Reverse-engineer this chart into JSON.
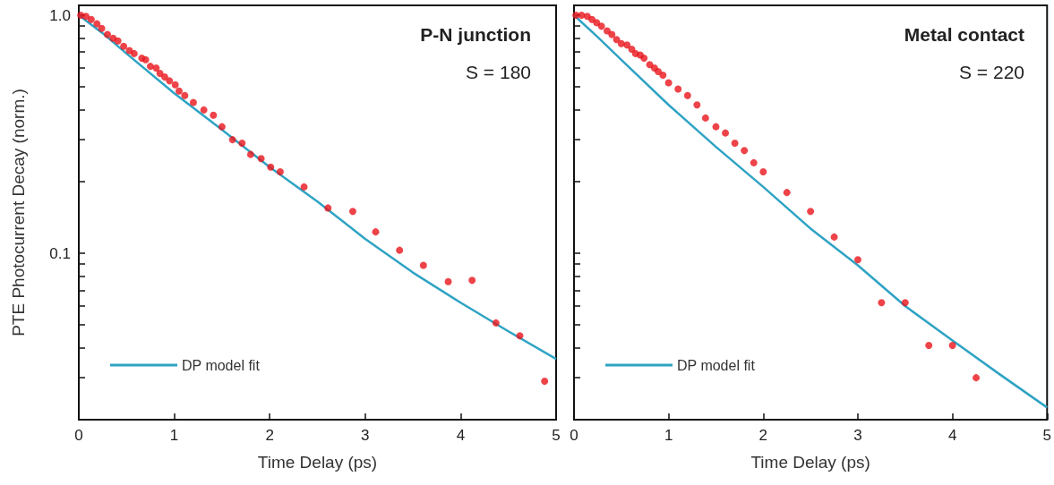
{
  "chart_data": [
    {
      "type": "scatter",
      "xlabel": "Time Delay (ps)",
      "ylabel": "PTE Photocurrent Decay (norm.)",
      "log": "y",
      "grid": false,
      "legend": "bottom left",
      "marker": "circle",
      "xlim": [
        0,
        5
      ],
      "xticks": [
        0,
        1,
        2,
        3,
        4,
        5
      ],
      "ylim": [
        0.02,
        1.1
      ],
      "yticks": [
        {
          "value": 0.03,
          "label": null
        },
        {
          "value": 0.04,
          "label": null
        },
        {
          "value": 0.05,
          "label": null
        },
        {
          "value": 0.06,
          "label": null
        },
        {
          "value": 0.07,
          "label": null
        },
        {
          "value": 0.08,
          "label": null
        },
        {
          "value": 0.09,
          "label": null
        },
        {
          "value": 0.1,
          "label": "0.1"
        },
        {
          "value": 0.2,
          "label": null
        },
        {
          "value": 0.3,
          "label": null
        },
        {
          "value": 0.4,
          "label": null
        },
        {
          "value": 0.5,
          "label": null
        },
        {
          "value": 0.6,
          "label": null
        },
        {
          "value": 0.7,
          "label": null
        },
        {
          "value": 0.8,
          "label": null
        },
        {
          "value": 0.9,
          "label": null
        },
        {
          "value": 1,
          "label": "1.0"
        }
      ],
      "annotations": [
        "P-N junction",
        "S = 180"
      ],
      "series": [
        {
          "color": "#e8141c",
          "x": [
            0.02,
            0.075,
            0.13,
            0.19,
            0.24,
            0.3,
            0.36,
            0.41,
            0.47,
            0.53,
            0.58,
            0.66,
            0.7,
            0.75,
            0.81,
            0.85,
            0.9,
            0.95,
            1.01,
            1.05,
            1.11,
            1.2,
            1.31,
            1.41,
            1.5,
            1.61,
            1.71,
            1.8,
            1.91,
            2.01,
            2.11,
            2.36,
            2.61,
            2.87,
            3.11,
            3.36,
            3.61,
            3.87,
            4.12,
            4.37,
            4.62,
            4.88
          ],
          "values": [
            1.0,
            0.99,
            0.96,
            0.92,
            0.88,
            0.83,
            0.8,
            0.78,
            0.74,
            0.71,
            0.69,
            0.66,
            0.65,
            0.61,
            0.6,
            0.57,
            0.55,
            0.53,
            0.51,
            0.48,
            0.46,
            0.43,
            0.4,
            0.38,
            0.34,
            0.3,
            0.29,
            0.26,
            0.25,
            0.23,
            0.22,
            0.19,
            0.155,
            0.15,
            0.123,
            0.103,
            0.089,
            0.076,
            0.077,
            0.051,
            0.045,
            0.029
          ]
        },
        {
          "type": "line",
          "marker": "none",
          "name": "DP model fit",
          "color": "#2fa3c4",
          "x": [
            0,
            0.25,
            0.5,
            1,
            1.5,
            2,
            2.5,
            3,
            3.5,
            4,
            4.5,
            5
          ],
          "values": [
            1.0,
            0.84,
            0.69,
            0.47,
            0.33,
            0.23,
            0.165,
            0.115,
            0.083,
            0.062,
            0.047,
            0.036
          ]
        }
      ]
    },
    {
      "type": "scatter",
      "xlabel": "Time Delay (ps)",
      "log": "y",
      "grid": false,
      "legend": "bottom left",
      "marker": "circle",
      "tick_labels": "x",
      "xlim": [
        0,
        5
      ],
      "xticks": [
        0,
        1,
        2,
        3,
        4,
        5
      ],
      "ylim": [
        0.02,
        1.1
      ],
      "yticks": [
        {
          "value": 0.03,
          "label": null
        },
        {
          "value": 0.04,
          "label": null
        },
        {
          "value": 0.05,
          "label": null
        },
        {
          "value": 0.06,
          "label": null
        },
        {
          "value": 0.07,
          "label": null
        },
        {
          "value": 0.08,
          "label": null
        },
        {
          "value": 0.09,
          "label": null
        },
        {
          "value": 0.1,
          "label": null
        },
        {
          "value": 0.2,
          "label": null
        },
        {
          "value": 0.3,
          "label": null
        },
        {
          "value": 0.4,
          "label": null
        },
        {
          "value": 0.5,
          "label": null
        },
        {
          "value": 0.6,
          "label": null
        },
        {
          "value": 0.7,
          "label": null
        },
        {
          "value": 0.8,
          "label": null
        },
        {
          "value": 0.9,
          "label": null
        },
        {
          "value": 1,
          "label": null
        }
      ],
      "annotations": [
        "Metal contact",
        "S = 220"
      ],
      "series": [
        {
          "color": "#e8141c",
          "x": [
            0.02,
            0.08,
            0.14,
            0.19,
            0.24,
            0.29,
            0.35,
            0.4,
            0.45,
            0.5,
            0.56,
            0.61,
            0.65,
            0.7,
            0.74,
            0.8,
            0.85,
            0.89,
            0.94,
            1.0,
            1.1,
            1.2,
            1.3,
            1.39,
            1.5,
            1.6,
            1.7,
            1.8,
            1.9,
            2.0,
            2.25,
            2.5,
            2.75,
            3.0,
            3.25,
            3.5,
            3.75,
            4.0,
            4.25
          ],
          "values": [
            1.0,
            1.0,
            0.99,
            0.96,
            0.93,
            0.9,
            0.86,
            0.83,
            0.79,
            0.76,
            0.75,
            0.72,
            0.69,
            0.68,
            0.66,
            0.62,
            0.6,
            0.58,
            0.56,
            0.52,
            0.49,
            0.46,
            0.42,
            0.37,
            0.34,
            0.32,
            0.29,
            0.27,
            0.24,
            0.22,
            0.18,
            0.15,
            0.117,
            0.094,
            0.062,
            0.062,
            0.041,
            0.041,
            0.03
          ]
        },
        {
          "type": "line",
          "marker": "none",
          "name": "DP model fit",
          "color": "#2fa3c4",
          "x": [
            0,
            0.25,
            0.5,
            1,
            1.5,
            2,
            2.5,
            3,
            3.5,
            4,
            4.5,
            5
          ],
          "values": [
            1.0,
            0.81,
            0.65,
            0.42,
            0.28,
            0.19,
            0.127,
            0.089,
            0.06,
            0.043,
            0.031,
            0.0225
          ]
        }
      ]
    }
  ]
}
